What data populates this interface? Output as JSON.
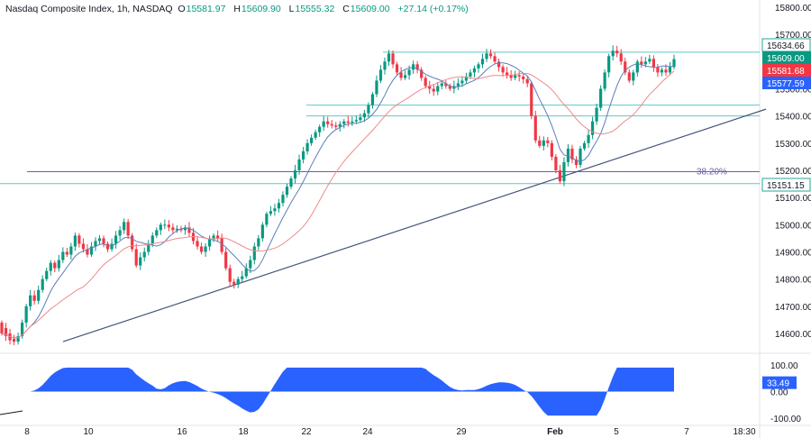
{
  "legend": {
    "symbol": "Nasdaq Composite Index, 1h, NASDAQ",
    "open_label": "O",
    "open": "15581.97",
    "high_label": "H",
    "high": "15609.90",
    "low_label": "L",
    "low": "15555.32",
    "close_label": "C",
    "close": "15609.00",
    "change": "+27.14 (+0.17%)"
  },
  "chart_data": [
    {
      "type": "candlestick",
      "title": "Nasdaq Composite Index, 1h, NASDAQ",
      "ylim": [
        14520,
        15830
      ],
      "y_ticks": [
        "15800.00",
        "15700.00",
        "15600.00",
        "15500.00",
        "15400.00",
        "15300.00",
        "15200.00",
        "15100.00",
        "15000.00",
        "14900.00",
        "14800.00",
        "14700.00",
        "14600.00"
      ],
      "x_ticks": [
        "8",
        "10",
        "16",
        "18",
        "22",
        "24",
        "29",
        "Feb",
        "5",
        "7",
        "18:30"
      ],
      "price_tags": [
        {
          "label": "15634.66",
          "style": "outline",
          "color": "#26a69a"
        },
        {
          "label": "15609.00",
          "style": "fill",
          "color": "#089981"
        },
        {
          "label": "15581.68",
          "style": "fill",
          "color": "#f23645"
        },
        {
          "label": "15577.59",
          "style": "fill",
          "color": "#2962ff"
        },
        {
          "label": "15151.15",
          "style": "outline",
          "color": "#26a69a"
        }
      ],
      "fib_label": "38.20%",
      "colors": {
        "up": "#089981",
        "down": "#f23645",
        "fast_ma": "#5b7fb8",
        "slow_ma": "#ef8a8a",
        "levels": "#5fc9c4",
        "trendline": "#44547a",
        "fib": "#6b5fa8"
      },
      "series": [
        {
          "values": [
            [
              14640,
              14600
            ],
            [
              14620,
              14590
            ],
            [
              14600,
              14575
            ],
            [
              14580,
              14570
            ],
            [
              14570,
              14590
            ],
            [
              14590,
              14640
            ],
            [
              14640,
              14700
            ],
            [
              14700,
              14740
            ],
            [
              14740,
              14720
            ],
            [
              14720,
              14760
            ],
            [
              14760,
              14800
            ],
            [
              14800,
              14830
            ],
            [
              14830,
              14860
            ],
            [
              14860,
              14840
            ],
            [
              14840,
              14870
            ],
            [
              14870,
              14900
            ],
            [
              14900,
              14890
            ],
            [
              14890,
              14920
            ],
            [
              14920,
              14960
            ],
            [
              14960,
              14930
            ],
            [
              14930,
              14910
            ],
            [
              14910,
              14890
            ],
            [
              14890,
              14920
            ],
            [
              14920,
              14940
            ],
            [
              14940,
              14950
            ],
            [
              14950,
              14930
            ],
            [
              14930,
              14910
            ],
            [
              14910,
              14930
            ],
            [
              14930,
              14960
            ],
            [
              14960,
              14980
            ],
            [
              14980,
              15010
            ],
            [
              15010,
              14960
            ],
            [
              14960,
              14910
            ],
            [
              14910,
              14850
            ],
            [
              14850,
              14880
            ],
            [
              14880,
              14900
            ],
            [
              14900,
              14930
            ],
            [
              14930,
              14960
            ],
            [
              14960,
              14980
            ],
            [
              14980,
              15000
            ],
            [
              15000,
              15000
            ],
            [
              15000,
              14990
            ],
            [
              14990,
              14980
            ],
            [
              14980,
              14985
            ],
            [
              14985,
              14980
            ],
            [
              14980,
              14990
            ],
            [
              14990,
              14970
            ],
            [
              14970,
              14940
            ],
            [
              14940,
              14920
            ],
            [
              14920,
              14900
            ],
            [
              14900,
              14920
            ],
            [
              14920,
              14950
            ],
            [
              14950,
              14960
            ],
            [
              14960,
              14950
            ],
            [
              14950,
              14900
            ],
            [
              14900,
              14840
            ],
            [
              14840,
              14790
            ],
            [
              14790,
              14780
            ],
            [
              14780,
              14800
            ],
            [
              14800,
              14810
            ],
            [
              14810,
              14840
            ],
            [
              14840,
              14870
            ],
            [
              14870,
              14920
            ],
            [
              14920,
              14950
            ],
            [
              14950,
              15000
            ],
            [
              15000,
              15040
            ],
            [
              15040,
              15050
            ],
            [
              15050,
              15060
            ],
            [
              15060,
              15080
            ],
            [
              15080,
              15110
            ],
            [
              15110,
              15140
            ],
            [
              15140,
              15170
            ],
            [
              15170,
              15200
            ],
            [
              15200,
              15240
            ],
            [
              15240,
              15270
            ],
            [
              15270,
              15300
            ],
            [
              15300,
              15320
            ],
            [
              15320,
              15340
            ],
            [
              15340,
              15360
            ],
            [
              15360,
              15380
            ],
            [
              15380,
              15370
            ],
            [
              15370,
              15365
            ],
            [
              15365,
              15360
            ],
            [
              15360,
              15370
            ],
            [
              15370,
              15380
            ],
            [
              15380,
              15375
            ],
            [
              15375,
              15380
            ],
            [
              15380,
              15385
            ],
            [
              15385,
              15395
            ],
            [
              15395,
              15410
            ],
            [
              15410,
              15440
            ],
            [
              15440,
              15480
            ],
            [
              15480,
              15530
            ],
            [
              15530,
              15570
            ],
            [
              15570,
              15600
            ],
            [
              15600,
              15630
            ],
            [
              15630,
              15590
            ],
            [
              15590,
              15560
            ],
            [
              15560,
              15540
            ],
            [
              15540,
              15550
            ],
            [
              15550,
              15570
            ],
            [
              15570,
              15590
            ],
            [
              15590,
              15570
            ],
            [
              15570,
              15540
            ],
            [
              15540,
              15510
            ],
            [
              15510,
              15500
            ],
            [
              15500,
              15490
            ],
            [
              15490,
              15510
            ],
            [
              15510,
              15520
            ],
            [
              15520,
              15510
            ],
            [
              15510,
              15500
            ],
            [
              15500,
              15510
            ],
            [
              15510,
              15520
            ],
            [
              15520,
              15530
            ],
            [
              15530,
              15545
            ],
            [
              15545,
              15560
            ],
            [
              15560,
              15575
            ],
            [
              15575,
              15590
            ],
            [
              15590,
              15610
            ],
            [
              15610,
              15630
            ],
            [
              15630,
              15620
            ],
            [
              15620,
              15600
            ],
            [
              15600,
              15580
            ],
            [
              15580,
              15560
            ],
            [
              15560,
              15550
            ],
            [
              15550,
              15540
            ],
            [
              15540,
              15550
            ],
            [
              15550,
              15545
            ],
            [
              15545,
              15535
            ],
            [
              15535,
              15520
            ],
            [
              15520,
              15400
            ],
            [
              15400,
              15310
            ],
            [
              15310,
              15290
            ],
            [
              15290,
              15310
            ],
            [
              15310,
              15300
            ],
            [
              15300,
              15250
            ],
            [
              15250,
              15200
            ],
            [
              15200,
              15160
            ],
            [
              15160,
              15230
            ],
            [
              15230,
              15280
            ],
            [
              15280,
              15240
            ],
            [
              15240,
              15220
            ],
            [
              15220,
              15280
            ],
            [
              15280,
              15300
            ],
            [
              15300,
              15330
            ],
            [
              15330,
              15380
            ],
            [
              15380,
              15430
            ],
            [
              15430,
              15500
            ],
            [
              15500,
              15560
            ],
            [
              15560,
              15620
            ],
            [
              15620,
              15640
            ],
            [
              15640,
              15630
            ],
            [
              15630,
              15600
            ],
            [
              15600,
              15560
            ],
            [
              15560,
              15530
            ],
            [
              15530,
              15560
            ],
            [
              15560,
              15600
            ],
            [
              15600,
              15590
            ],
            [
              15590,
              15600
            ],
            [
              15600,
              15610
            ],
            [
              15610,
              15580
            ],
            [
              15580,
              15560
            ],
            [
              15560,
              15570
            ],
            [
              15570,
              15560
            ],
            [
              15560,
              15580
            ],
            [
              15580,
              15609
            ]
          ]
        }
      ]
    },
    {
      "type": "area",
      "title": "",
      "ylim": [
        -140,
        140
      ],
      "y_ticks": [
        "100.00",
        "0.00",
        "-100.00"
      ],
      "last_value": "33.49",
      "color": "#2962ff"
    }
  ]
}
